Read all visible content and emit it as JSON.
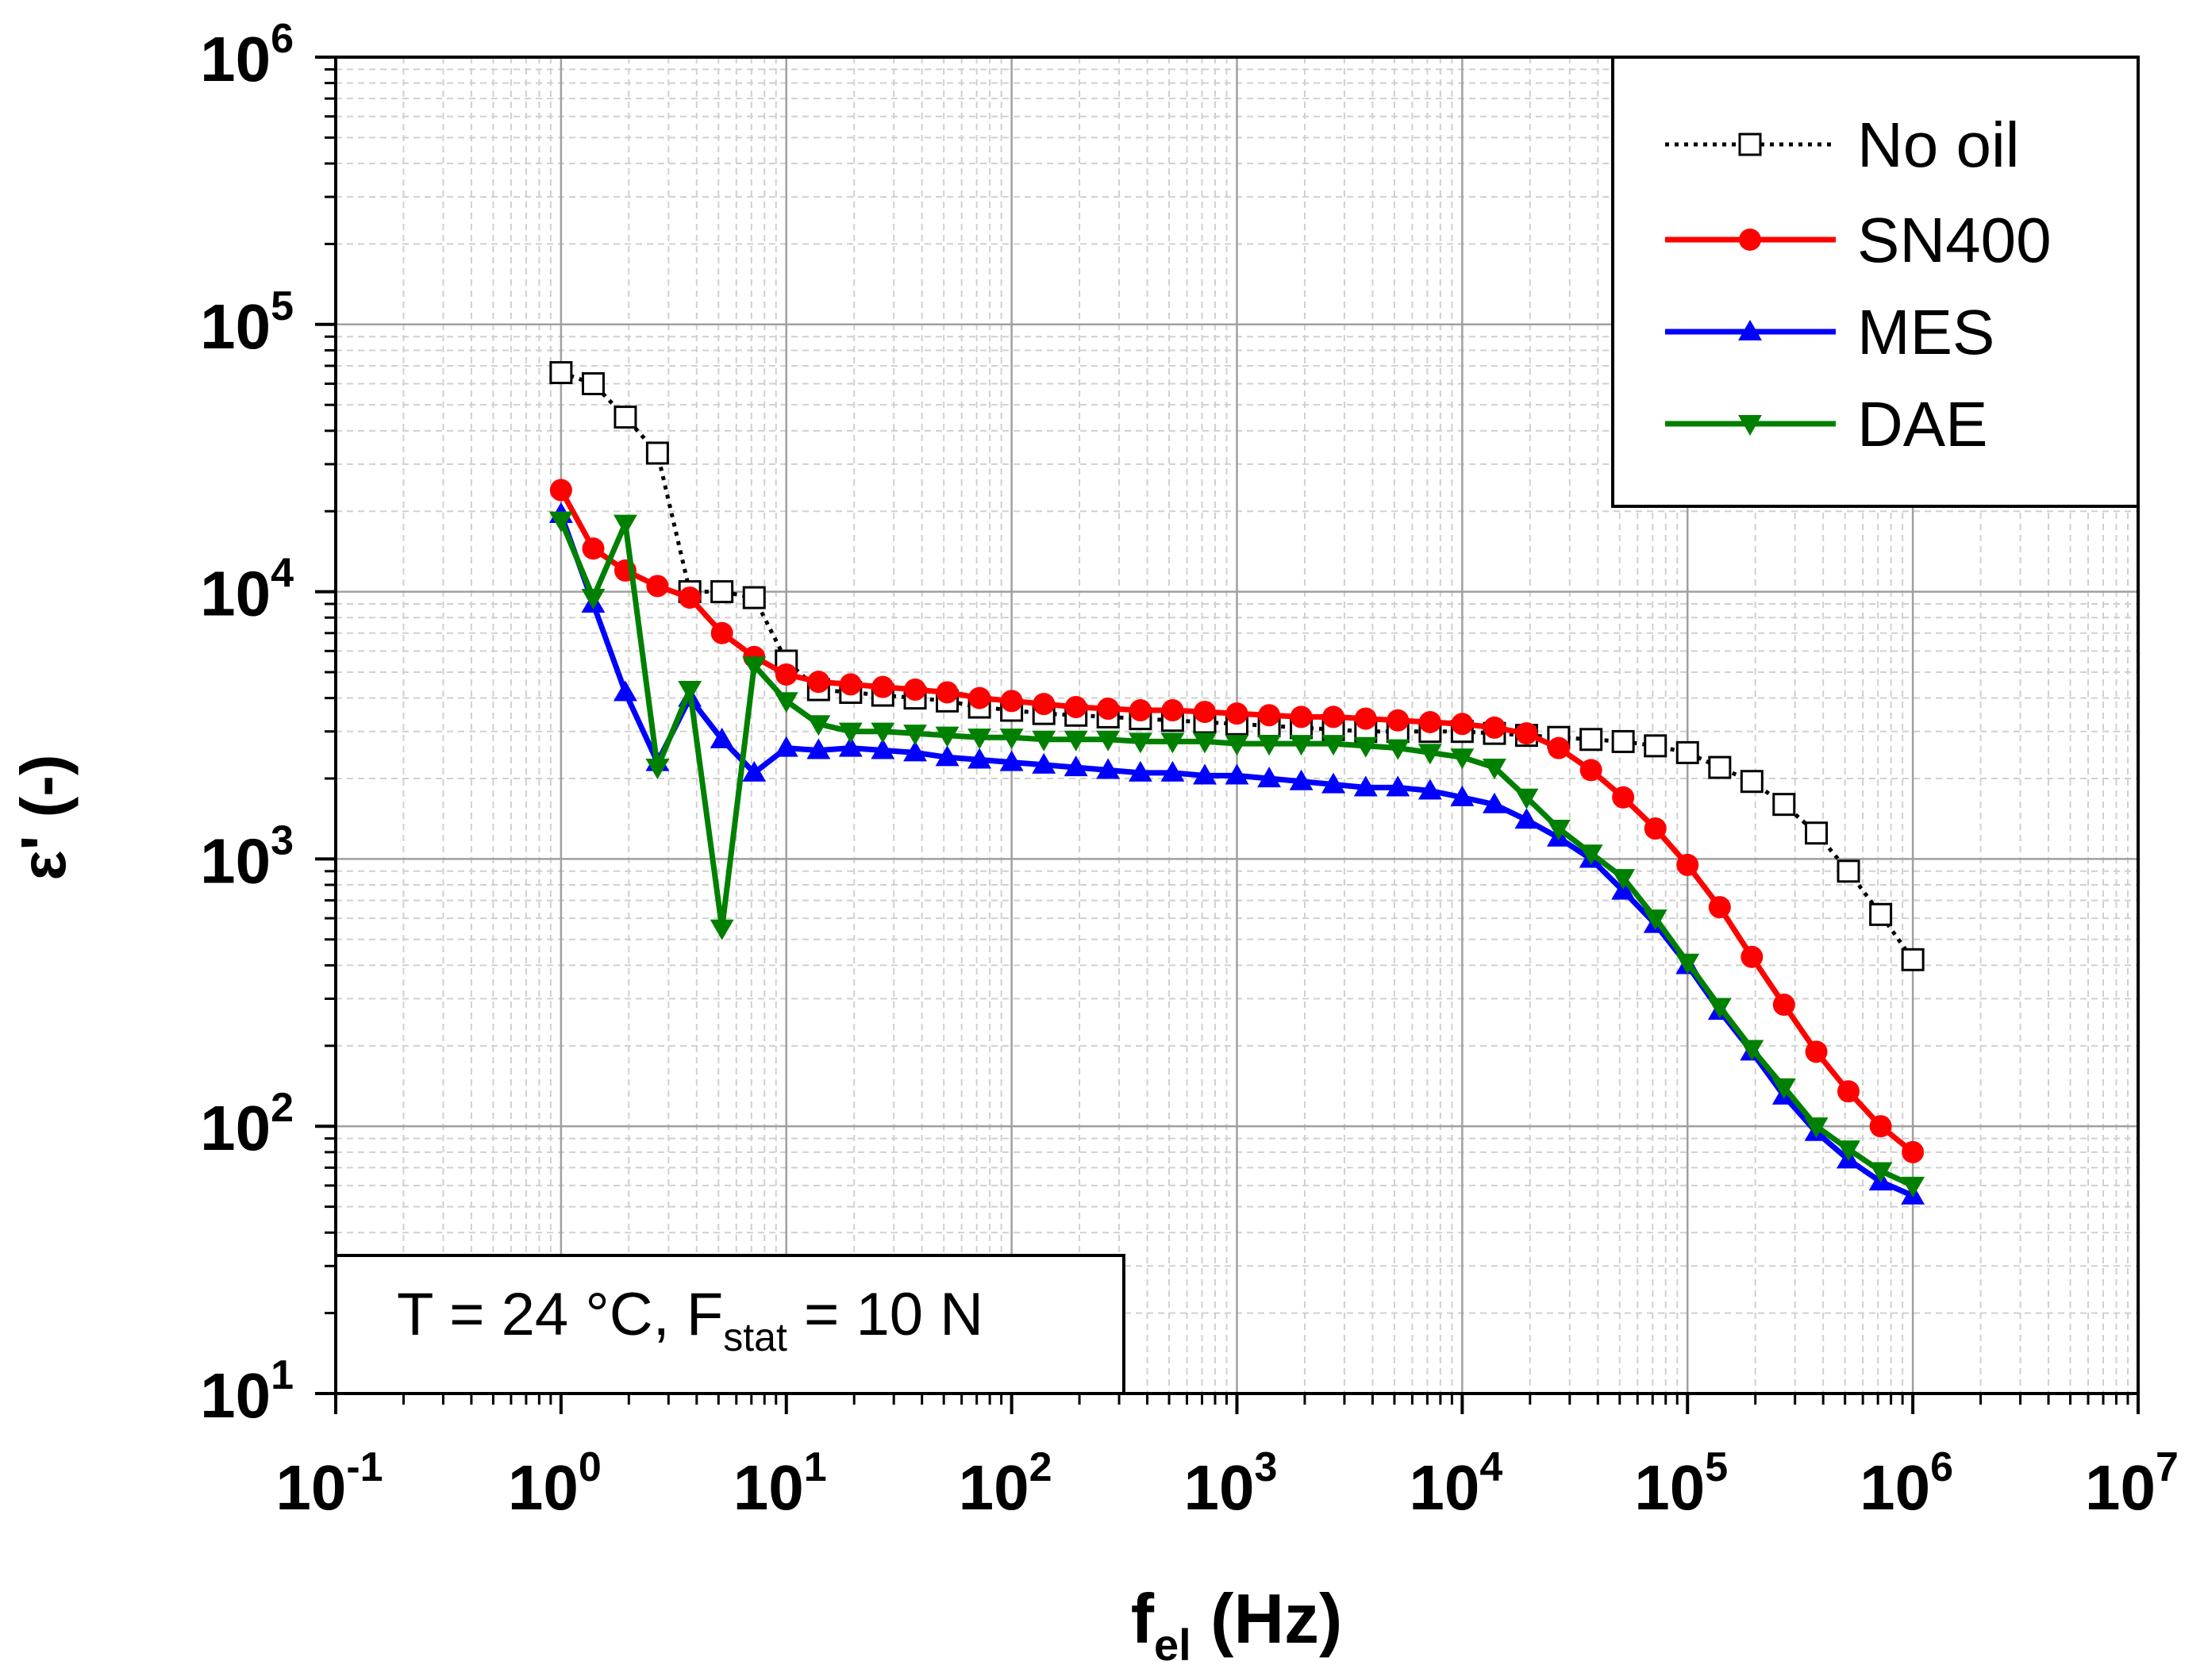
{
  "chart_data": {
    "type": "line",
    "xlabel": {
      "base": "f",
      "sub": "el",
      "unit": " (Hz)"
    },
    "ylabel": "ε' (-)",
    "xscale": "log",
    "yscale": "log",
    "xlim": [
      0.1,
      10000000
    ],
    "ylim": [
      10,
      1000000
    ],
    "x_ticks": [
      {
        "base": "10",
        "exp": "-1",
        "value": 0.1
      },
      {
        "base": "10",
        "exp": "0",
        "value": 1
      },
      {
        "base": "10",
        "exp": "1",
        "value": 10
      },
      {
        "base": "10",
        "exp": "2",
        "value": 100
      },
      {
        "base": "10",
        "exp": "3",
        "value": 1000
      },
      {
        "base": "10",
        "exp": "4",
        "value": 10000
      },
      {
        "base": "10",
        "exp": "5",
        "value": 100000
      },
      {
        "base": "10",
        "exp": "6",
        "value": 1000000
      },
      {
        "base": "10",
        "exp": "7",
        "value": 10000000
      }
    ],
    "y_ticks": [
      {
        "base": "10",
        "exp": "1",
        "value": 10
      },
      {
        "base": "10",
        "exp": "2",
        "value": 100
      },
      {
        "base": "10",
        "exp": "3",
        "value": 1000
      },
      {
        "base": "10",
        "exp": "4",
        "value": 10000
      },
      {
        "base": "10",
        "exp": "5",
        "value": 100000
      },
      {
        "base": "10",
        "exp": "6",
        "value": 1000000
      }
    ],
    "grid": true,
    "legend_position": "top-right",
    "annotation": {
      "pre": "T = 24 °C, F",
      "sub": "stat",
      "post": " = 10 N"
    },
    "x": [
      1,
      1.39,
      1.93,
      2.68,
      3.73,
      5.18,
      7.2,
      10,
      13.9,
      19.3,
      26.8,
      37.3,
      51.8,
      72,
      100,
      139,
      193,
      268,
      373,
      518,
      720,
      1000,
      1390,
      1930,
      2680,
      3730,
      5180,
      7200,
      10000,
      13900,
      19300,
      26800,
      37300,
      51800,
      72000,
      100000,
      139000,
      193000,
      268000,
      373000,
      518000,
      720000,
      1000000
    ],
    "series": [
      {
        "name": "No oil",
        "color": "#000000",
        "marker": "square-open",
        "line": "dotted",
        "values": [
          66000,
          60000,
          45000,
          33000,
          10000,
          10000,
          9500,
          5500,
          4300,
          4200,
          4100,
          4000,
          3900,
          3700,
          3600,
          3500,
          3450,
          3400,
          3350,
          3300,
          3250,
          3200,
          3150,
          3100,
          3050,
          3000,
          3000,
          3000,
          3000,
          2950,
          2900,
          2850,
          2800,
          2750,
          2650,
          2500,
          2200,
          1950,
          1600,
          1250,
          900,
          620,
          420
        ]
      },
      {
        "name": "SN400",
        "color": "#ff0000",
        "marker": "circle-filled",
        "line": "solid",
        "values": [
          24000,
          14500,
          12000,
          10500,
          9500,
          7000,
          5700,
          4900,
          4600,
          4500,
          4400,
          4300,
          4200,
          4000,
          3900,
          3800,
          3700,
          3650,
          3600,
          3600,
          3550,
          3500,
          3450,
          3400,
          3400,
          3350,
          3300,
          3250,
          3200,
          3100,
          2950,
          2600,
          2150,
          1700,
          1300,
          950,
          660,
          430,
          285,
          190,
          135,
          100,
          80
        ]
      },
      {
        "name": "MES",
        "color": "#0000ff",
        "marker": "triangle-up-filled",
        "line": "solid",
        "values": [
          19500,
          9000,
          4200,
          2300,
          4000,
          2800,
          2100,
          2600,
          2550,
          2600,
          2550,
          2500,
          2400,
          2350,
          2300,
          2250,
          2200,
          2150,
          2100,
          2100,
          2050,
          2050,
          2000,
          1950,
          1900,
          1850,
          1850,
          1800,
          1700,
          1600,
          1400,
          1200,
          1000,
          760,
          570,
          400,
          270,
          190,
          130,
          95,
          75,
          62,
          55
        ]
      },
      {
        "name": "DAE",
        "color": "#008000",
        "marker": "triangle-down-filled",
        "line": "solid",
        "values": [
          18500,
          9500,
          18000,
          2200,
          4300,
          550,
          5300,
          3900,
          3200,
          3000,
          3000,
          2950,
          2900,
          2850,
          2850,
          2800,
          2800,
          2800,
          2750,
          2750,
          2750,
          2700,
          2700,
          2700,
          2700,
          2650,
          2600,
          2500,
          2400,
          2200,
          1700,
          1300,
          1050,
          850,
          600,
          410,
          280,
          195,
          140,
          100,
          82,
          68,
          60
        ]
      }
    ]
  }
}
